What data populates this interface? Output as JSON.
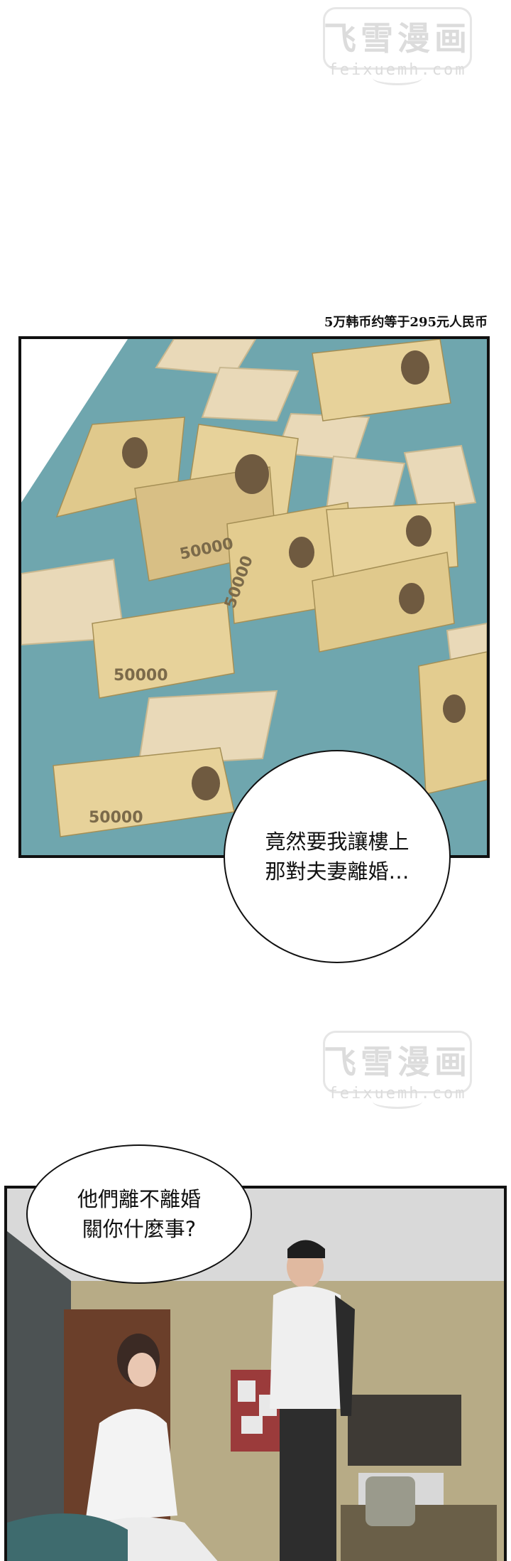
{
  "watermark": {
    "title": "飞雪漫画",
    "site": "feixuemh.com"
  },
  "caption": "5万韩币约等于295元人民币",
  "panel1": {
    "banknote_value": "50000",
    "bubble_lines": [
      "竟然要我讓樓上",
      "那對夫妻離婚…"
    ]
  },
  "panel2": {
    "bubble_lines": [
      "他們離不離婚",
      "關你什麼事?"
    ]
  },
  "colors": {
    "table": "#6fa6ae",
    "banknote": "#e7d29a",
    "envelope": "#e9d9b8",
    "wall": "#b7ab86"
  }
}
